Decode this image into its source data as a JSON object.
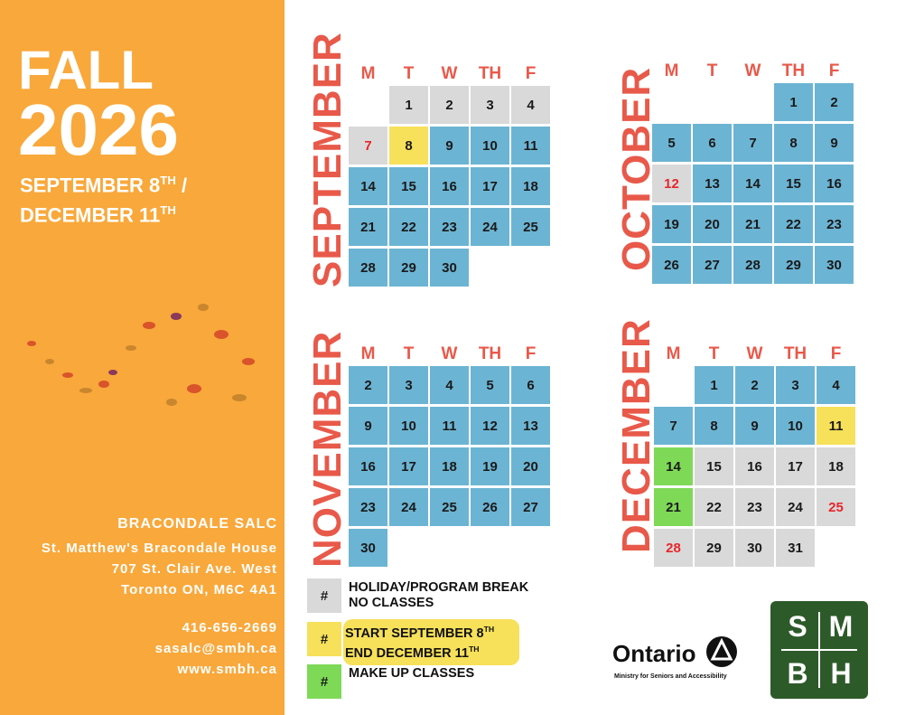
{
  "sidebar": {
    "title": "FALL",
    "year": "2026",
    "dates": [
      {
        "text": "SEPTEMBER 8",
        "sup": "TH",
        "after": " /"
      },
      {
        "text": "DECEMBER 11",
        "sup": "TH"
      }
    ],
    "org": "BRACONDALE SALC",
    "address": [
      "St. Matthew's Bracondale House",
      "707 St. Clair Ave. West",
      "Toronto ON, M6C 4A1"
    ],
    "contact": [
      "416-656-2669",
      "sasalc@smbh.ca",
      "www.smbh.ca"
    ]
  },
  "colors": {
    "class": "#6cb4d3",
    "break": "#d9d9d9",
    "start-end": "#f7e05a",
    "makeup": "#7ed957",
    "highlight": "#e8262a"
  },
  "weekdays": [
    "M",
    "T",
    "W",
    "TH",
    "F"
  ],
  "months": [
    {
      "name": "SEPTEMBER",
      "weeks": [
        [
          null,
          {
            "day": 1,
            "kind": "break"
          },
          {
            "day": 2,
            "kind": "break"
          },
          {
            "day": 3,
            "kind": "break"
          },
          {
            "day": 4,
            "kind": "break"
          }
        ],
        [
          {
            "day": 7,
            "kind": "break",
            "highlight": true
          },
          {
            "day": 8,
            "kind": "start-end"
          },
          {
            "day": 9,
            "kind": "class"
          },
          {
            "day": 10,
            "kind": "class"
          },
          {
            "day": 11,
            "kind": "class"
          }
        ],
        [
          {
            "day": 14,
            "kind": "class"
          },
          {
            "day": 15,
            "kind": "class"
          },
          {
            "day": 16,
            "kind": "class"
          },
          {
            "day": 17,
            "kind": "class"
          },
          {
            "day": 18,
            "kind": "class"
          }
        ],
        [
          {
            "day": 21,
            "kind": "class"
          },
          {
            "day": 22,
            "kind": "class"
          },
          {
            "day": 23,
            "kind": "class"
          },
          {
            "day": 24,
            "kind": "class"
          },
          {
            "day": 25,
            "kind": "class"
          }
        ],
        [
          {
            "day": 28,
            "kind": "class"
          },
          {
            "day": 29,
            "kind": "class"
          },
          {
            "day": 30,
            "kind": "class"
          },
          null,
          null
        ]
      ]
    },
    {
      "name": "OCTOBER",
      "weeks": [
        [
          null,
          null,
          null,
          {
            "day": 1,
            "kind": "class"
          },
          {
            "day": 2,
            "kind": "class"
          }
        ],
        [
          {
            "day": 5,
            "kind": "class"
          },
          {
            "day": 6,
            "kind": "class"
          },
          {
            "day": 7,
            "kind": "class"
          },
          {
            "day": 8,
            "kind": "class"
          },
          {
            "day": 9,
            "kind": "class"
          }
        ],
        [
          {
            "day": 12,
            "kind": "break",
            "highlight": true
          },
          {
            "day": 13,
            "kind": "class"
          },
          {
            "day": 14,
            "kind": "class"
          },
          {
            "day": 15,
            "kind": "class"
          },
          {
            "day": 16,
            "kind": "class"
          }
        ],
        [
          {
            "day": 19,
            "kind": "class"
          },
          {
            "day": 20,
            "kind": "class"
          },
          {
            "day": 21,
            "kind": "class"
          },
          {
            "day": 22,
            "kind": "class"
          },
          {
            "day": 23,
            "kind": "class"
          }
        ],
        [
          {
            "day": 26,
            "kind": "class"
          },
          {
            "day": 27,
            "kind": "class"
          },
          {
            "day": 28,
            "kind": "class"
          },
          {
            "day": 29,
            "kind": "class"
          },
          {
            "day": 30,
            "kind": "class"
          }
        ]
      ]
    },
    {
      "name": "NOVEMBER",
      "weeks": [
        [
          {
            "day": 2,
            "kind": "class"
          },
          {
            "day": 3,
            "kind": "class"
          },
          {
            "day": 4,
            "kind": "class"
          },
          {
            "day": 5,
            "kind": "class"
          },
          {
            "day": 6,
            "kind": "class"
          }
        ],
        [
          {
            "day": 9,
            "kind": "class"
          },
          {
            "day": 10,
            "kind": "class"
          },
          {
            "day": 11,
            "kind": "class"
          },
          {
            "day": 12,
            "kind": "class"
          },
          {
            "day": 13,
            "kind": "class"
          }
        ],
        [
          {
            "day": 16,
            "kind": "class"
          },
          {
            "day": 17,
            "kind": "class"
          },
          {
            "day": 18,
            "kind": "class"
          },
          {
            "day": 19,
            "kind": "class"
          },
          {
            "day": 20,
            "kind": "class"
          }
        ],
        [
          {
            "day": 23,
            "kind": "class"
          },
          {
            "day": 24,
            "kind": "class"
          },
          {
            "day": 25,
            "kind": "class"
          },
          {
            "day": 26,
            "kind": "class"
          },
          {
            "day": 27,
            "kind": "class"
          }
        ],
        [
          {
            "day": 30,
            "kind": "class"
          },
          null,
          null,
          null,
          null
        ]
      ]
    },
    {
      "name": "DECEMBER",
      "weeks": [
        [
          null,
          {
            "day": 1,
            "kind": "class"
          },
          {
            "day": 2,
            "kind": "class"
          },
          {
            "day": 3,
            "kind": "class"
          },
          {
            "day": 4,
            "kind": "class"
          }
        ],
        [
          {
            "day": 7,
            "kind": "class"
          },
          {
            "day": 8,
            "kind": "class"
          },
          {
            "day": 9,
            "kind": "class"
          },
          {
            "day": 10,
            "kind": "class"
          },
          {
            "day": 11,
            "kind": "start-end"
          }
        ],
        [
          {
            "day": 14,
            "kind": "makeup"
          },
          {
            "day": 15,
            "kind": "break"
          },
          {
            "day": 16,
            "kind": "break"
          },
          {
            "day": 17,
            "kind": "break"
          },
          {
            "day": 18,
            "kind": "break"
          }
        ],
        [
          {
            "day": 21,
            "kind": "makeup"
          },
          {
            "day": 22,
            "kind": "break"
          },
          {
            "day": 23,
            "kind": "break"
          },
          {
            "day": 24,
            "kind": "break"
          },
          {
            "day": 25,
            "kind": "break",
            "highlight": true
          }
        ],
        [
          {
            "day": 28,
            "kind": "break",
            "highlight": true
          },
          {
            "day": 29,
            "kind": "break"
          },
          {
            "day": 30,
            "kind": "break"
          },
          {
            "day": 31,
            "kind": "break"
          },
          null
        ]
      ]
    }
  ],
  "legend": [
    {
      "symbol": "#",
      "kind": "break",
      "lines": [
        {
          "text": "HOLIDAY/PROGRAM BREAK"
        },
        {
          "text": "NO CLASSES"
        }
      ]
    },
    {
      "symbol": "#",
      "kind": "start-end",
      "lines": [
        {
          "text": "START SEPTEMBER 8",
          "sup": "TH"
        },
        {
          "text": "END DECEMBER 11",
          "sup": "TH"
        }
      ]
    },
    {
      "symbol": "#",
      "kind": "makeup",
      "lines": [
        {
          "text": "MAKE UP CLASSES"
        }
      ]
    }
  ],
  "ontario": {
    "name": "Ontario",
    "ministry": "Ministry for Seniors and Accessibility"
  },
  "smbh": [
    "S",
    "M",
    "B",
    "H"
  ]
}
